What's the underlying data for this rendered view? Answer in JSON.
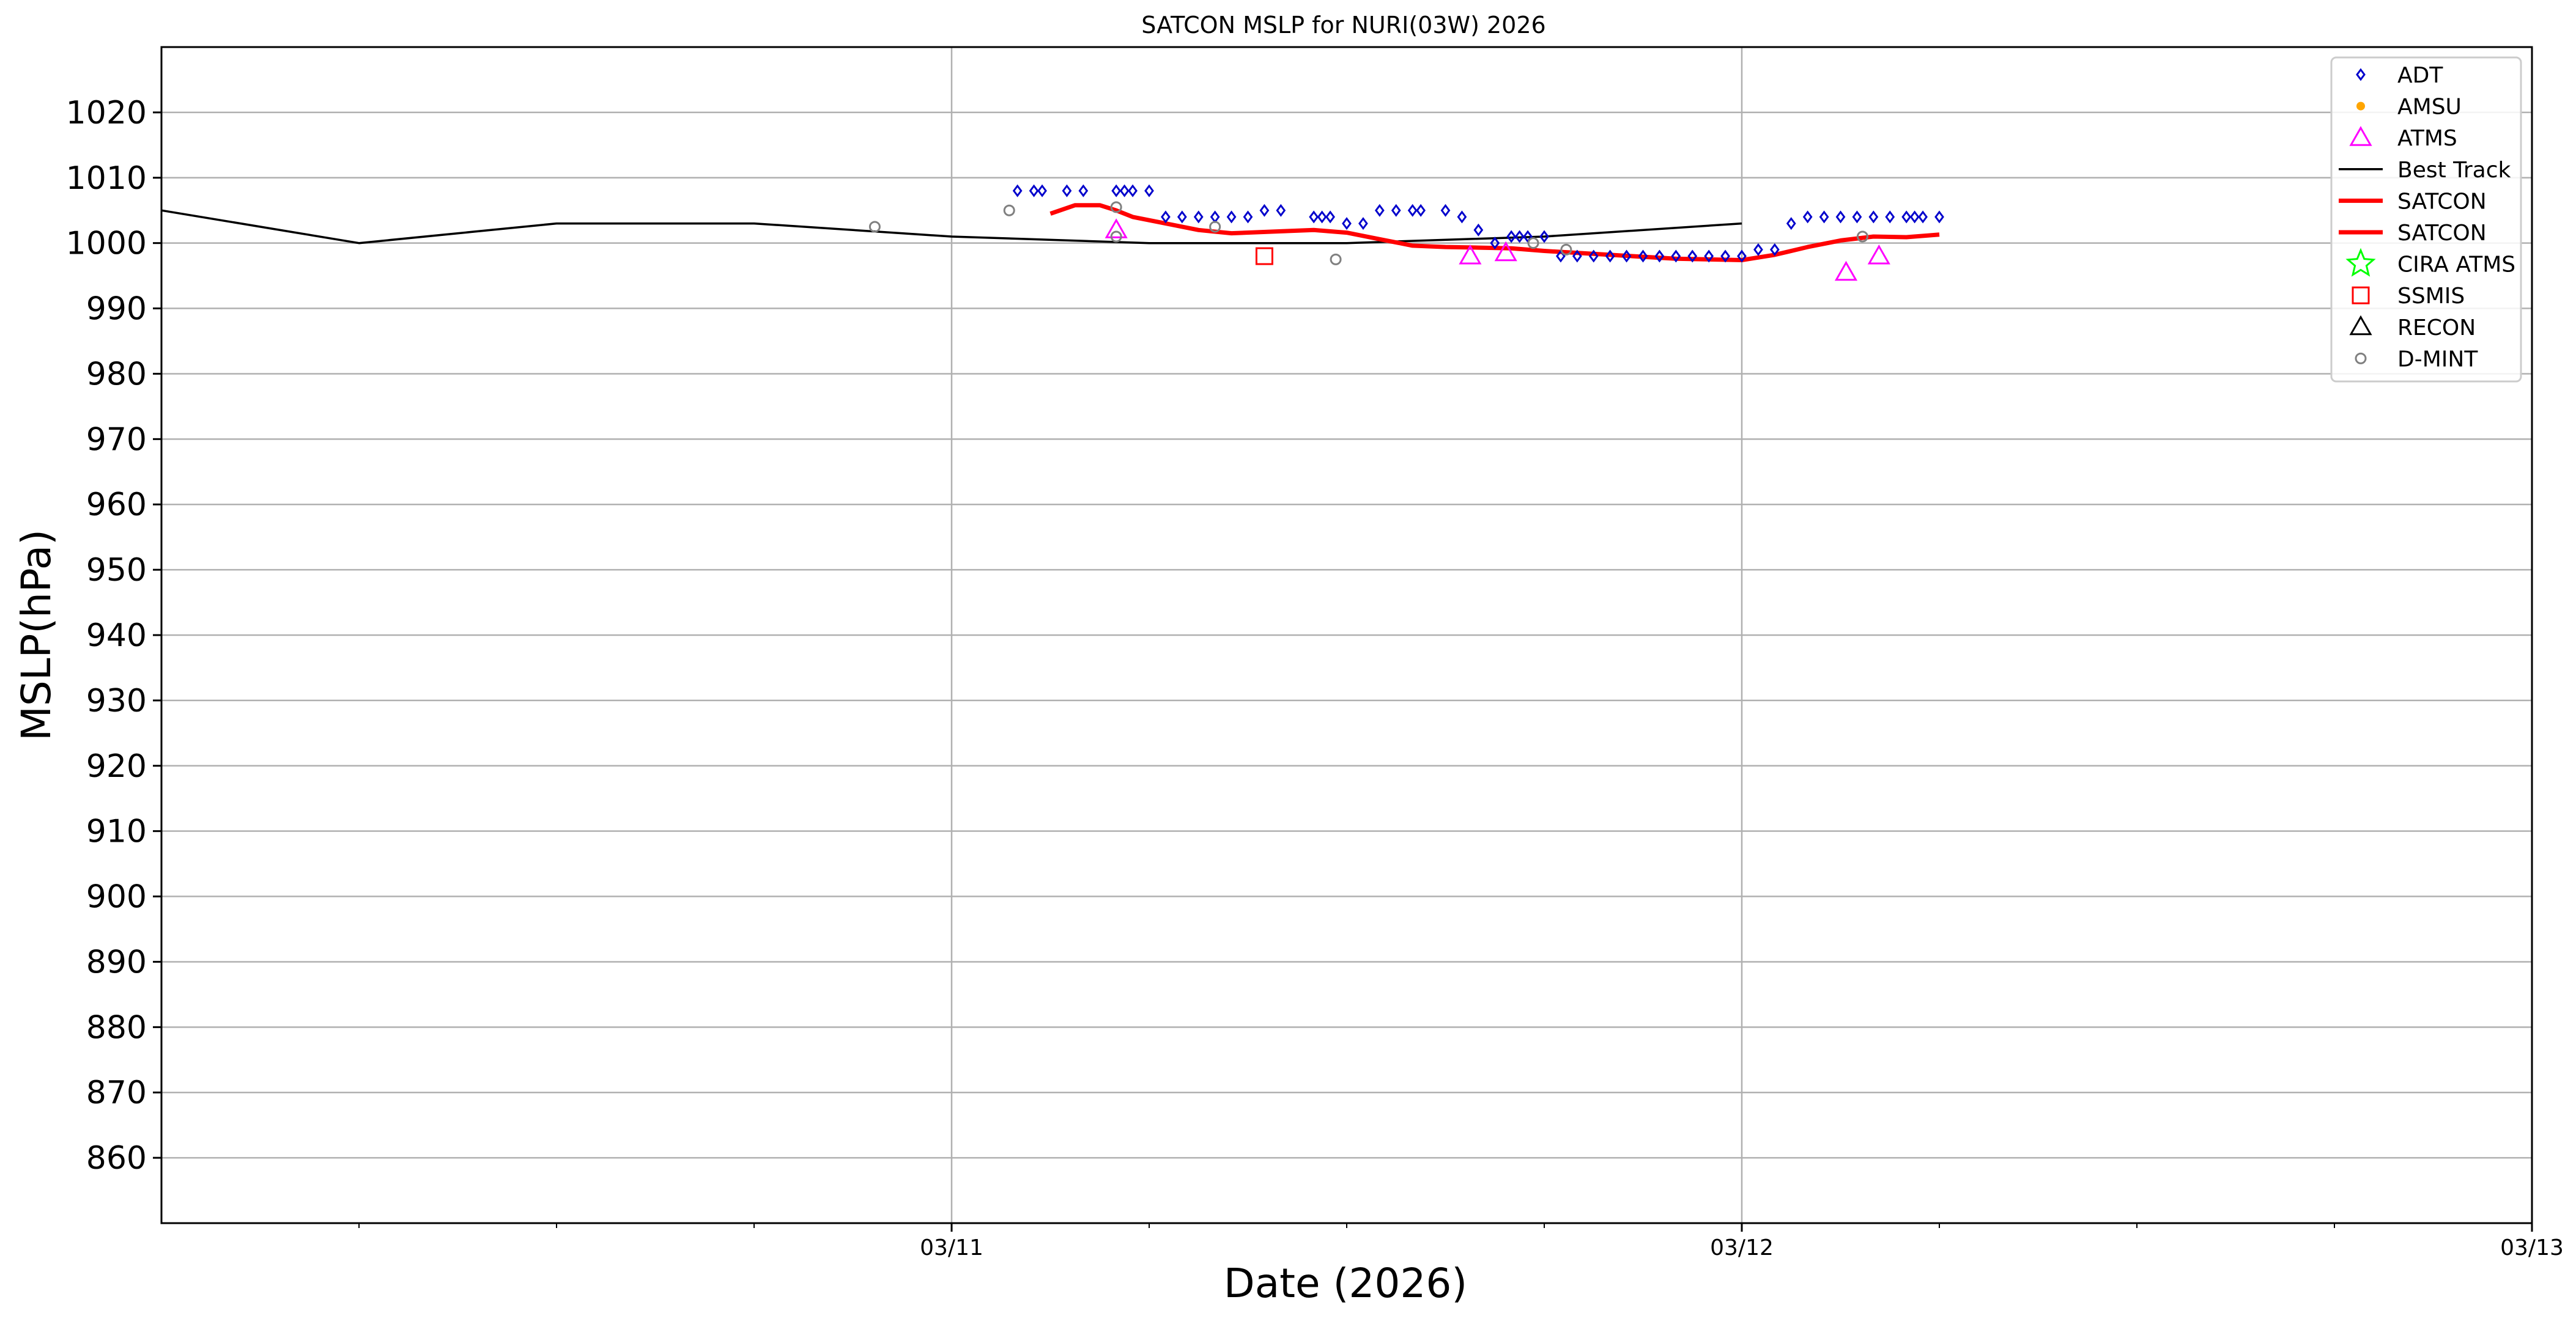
{
  "chart_data": {
    "type": "scatter",
    "title": "SATCON MSLP for NURI(03W) 2026",
    "xlabel": "Date (2026)",
    "ylabel": "MSLP(hPa)",
    "xlim": [
      "03/10 00:00",
      "03/13 00:00"
    ],
    "ylim": [
      850,
      1030
    ],
    "grid": true,
    "legend_position": "top-right",
    "x_ticks": [
      "03/11",
      "03/12",
      "03/13"
    ],
    "y_ticks": [
      860,
      870,
      880,
      890,
      900,
      910,
      920,
      930,
      940,
      950,
      960,
      970,
      980,
      990,
      1000,
      1010,
      1020
    ],
    "legend": [
      {
        "label": "ADT",
        "marker": "diamond",
        "color": "#0000cc"
      },
      {
        "label": "AMSU",
        "marker": "dot",
        "color": "#ffa500"
      },
      {
        "label": "ATMS",
        "marker": "triangle",
        "color": "#ff00ff"
      },
      {
        "label": "Best Track",
        "marker": "line",
        "color": "#000000"
      },
      {
        "label": "SATCON",
        "marker": "line",
        "color": "#ff0000"
      },
      {
        "label": "SATCON",
        "marker": "line",
        "color": "#ff0000"
      },
      {
        "label": "CIRA ATMS",
        "marker": "star",
        "color": "#00ff00"
      },
      {
        "label": "SSMIS",
        "marker": "square",
        "color": "#ff0000"
      },
      {
        "label": "RECON",
        "marker": "triangle",
        "color": "#000000"
      },
      {
        "label": "D-MINT",
        "marker": "circle",
        "color": "#808080"
      }
    ],
    "series": [
      {
        "name": "Best Track",
        "type": "line",
        "color": "#000000",
        "points": [
          [
            "03/10 00:00",
            1005
          ],
          [
            "03/10 06:00",
            1000
          ],
          [
            "03/10 12:00",
            1003
          ],
          [
            "03/10 18:00",
            1003
          ],
          [
            "03/11 00:00",
            1001
          ],
          [
            "03/11 06:00",
            1000
          ],
          [
            "03/11 12:00",
            1000
          ],
          [
            "03/11 18:00",
            1001
          ],
          [
            "03/12 00:00",
            1003
          ]
        ]
      },
      {
        "name": "SATCON",
        "type": "line",
        "color": "#ff0000",
        "points": [
          [
            "03/11 03:00",
            1004.5
          ],
          [
            "03/11 03:45",
            1005.8
          ],
          [
            "03/11 04:30",
            1005.8
          ],
          [
            "03/11 05:00",
            1005
          ],
          [
            "03/11 05:30",
            1004
          ],
          [
            "03/11 06:30",
            1003
          ],
          [
            "03/11 07:30",
            1002
          ],
          [
            "03/11 08:30",
            1001.5
          ],
          [
            "03/11 10:00",
            1001.8
          ],
          [
            "03/11 11:00",
            1002
          ],
          [
            "03/11 12:00",
            1001.6
          ],
          [
            "03/11 13:00",
            1000.6
          ],
          [
            "03/11 14:00",
            999.6
          ],
          [
            "03/11 15:00",
            999.4
          ],
          [
            "03/11 16:00",
            999.3
          ],
          [
            "03/11 17:00",
            999.2
          ],
          [
            "03/11 18:00",
            998.8
          ],
          [
            "03/11 20:00",
            998.2
          ],
          [
            "03/11 22:00",
            997.6
          ],
          [
            "03/12 00:00",
            997.4
          ],
          [
            "03/12 01:00",
            998.2
          ],
          [
            "03/12 02:00",
            999.4
          ],
          [
            "03/12 03:00",
            1000.4
          ],
          [
            "03/12 04:00",
            1001
          ],
          [
            "03/12 05:00",
            1000.9
          ],
          [
            "03/12 06:00",
            1001.3
          ]
        ]
      },
      {
        "name": "ADT",
        "type": "scatter",
        "marker": "diamond",
        "color": "#0000cc",
        "points": [
          [
            "03/11 02:00",
            1008
          ],
          [
            "03/11 02:30",
            1008
          ],
          [
            "03/11 02:45",
            1008
          ],
          [
            "03/11 03:30",
            1008
          ],
          [
            "03/11 04:00",
            1008
          ],
          [
            "03/11 05:00",
            1008
          ],
          [
            "03/11 05:15",
            1008
          ],
          [
            "03/11 05:30",
            1008
          ],
          [
            "03/11 06:00",
            1008
          ],
          [
            "03/11 06:30",
            1004
          ],
          [
            "03/11 07:00",
            1004
          ],
          [
            "03/11 07:30",
            1004
          ],
          [
            "03/11 08:00",
            1004
          ],
          [
            "03/11 08:30",
            1004
          ],
          [
            "03/11 09:00",
            1004
          ],
          [
            "03/11 09:30",
            1005
          ],
          [
            "03/11 10:00",
            1005
          ],
          [
            "03/11 11:00",
            1004
          ],
          [
            "03/11 11:15",
            1004
          ],
          [
            "03/11 11:30",
            1004
          ],
          [
            "03/11 12:00",
            1003
          ],
          [
            "03/11 12:30",
            1003
          ],
          [
            "03/11 13:00",
            1005
          ],
          [
            "03/11 13:30",
            1005
          ],
          [
            "03/11 14:00",
            1005
          ],
          [
            "03/11 14:15",
            1005
          ],
          [
            "03/11 15:00",
            1005
          ],
          [
            "03/11 15:30",
            1004
          ],
          [
            "03/11 16:00",
            1002
          ],
          [
            "03/11 16:30",
            1000
          ],
          [
            "03/11 17:00",
            1001
          ],
          [
            "03/11 17:15",
            1001
          ],
          [
            "03/11 17:30",
            1001
          ],
          [
            "03/11 18:00",
            1001
          ],
          [
            "03/11 18:30",
            998
          ],
          [
            "03/11 19:00",
            998
          ],
          [
            "03/11 19:30",
            998
          ],
          [
            "03/11 20:00",
            998
          ],
          [
            "03/11 20:30",
            998
          ],
          [
            "03/11 21:00",
            998
          ],
          [
            "03/11 21:30",
            998
          ],
          [
            "03/11 22:00",
            998
          ],
          [
            "03/11 22:30",
            998
          ],
          [
            "03/11 23:00",
            998
          ],
          [
            "03/11 23:30",
            998
          ],
          [
            "03/12 00:00",
            998
          ],
          [
            "03/12 00:30",
            999
          ],
          [
            "03/12 01:00",
            999
          ],
          [
            "03/12 01:30",
            1003
          ],
          [
            "03/12 02:00",
            1004
          ],
          [
            "03/12 02:30",
            1004
          ],
          [
            "03/12 03:00",
            1004
          ],
          [
            "03/12 03:30",
            1004
          ],
          [
            "03/12 04:00",
            1004
          ],
          [
            "03/12 04:30",
            1004
          ],
          [
            "03/12 05:00",
            1004
          ],
          [
            "03/12 05:15",
            1004
          ],
          [
            "03/12 05:30",
            1004
          ],
          [
            "03/12 06:00",
            1004
          ]
        ]
      },
      {
        "name": "ATMS",
        "type": "scatter",
        "marker": "triangle",
        "color": "#ff00ff",
        "points": [
          [
            "03/11 05:00",
            1002
          ],
          [
            "03/11 15:45",
            998
          ],
          [
            "03/11 16:50",
            998.5
          ],
          [
            "03/12 03:10",
            995.5
          ],
          [
            "03/12 04:10",
            998
          ]
        ]
      },
      {
        "name": "SSMIS",
        "type": "scatter",
        "marker": "square",
        "color": "#ff0000",
        "points": [
          [
            "03/11 09:30",
            998
          ]
        ]
      },
      {
        "name": "D-MINT",
        "type": "scatter",
        "marker": "circle",
        "color": "#808080",
        "points": [
          [
            "03/10 21:40",
            1002.5
          ],
          [
            "03/11 01:45",
            1005
          ],
          [
            "03/11 05:00",
            1005.5
          ],
          [
            "03/11 05:00",
            1001
          ],
          [
            "03/11 08:00",
            1002.5
          ],
          [
            "03/11 11:40",
            997.5
          ],
          [
            "03/11 17:40",
            1000
          ],
          [
            "03/11 18:40",
            999
          ],
          [
            "03/12 03:40",
            1001
          ]
        ]
      }
    ]
  }
}
